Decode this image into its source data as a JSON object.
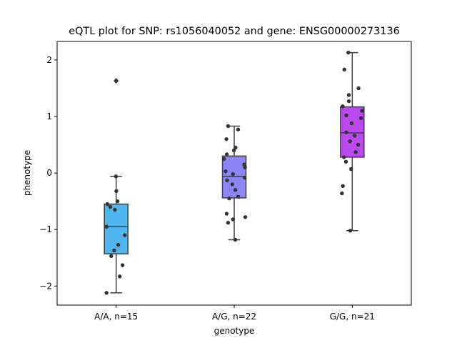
{
  "chart_data": {
    "type": "box",
    "title": "eQTL plot for SNP: rs1056040052 and gene: ENSG00000273136",
    "xlabel": "genotype",
    "ylabel": "phenotype",
    "ylim": [
      -2.35,
      2.35
    ],
    "yticks": [
      -2,
      -1,
      0,
      1,
      2
    ],
    "grid": false,
    "categories": [
      "A/A, n=15",
      "A/G, n=22",
      "G/G, n=21"
    ],
    "colors": [
      "#4fb6ef",
      "#8b85f5",
      "#b84af0"
    ],
    "boxes": [
      {
        "q1": -1.43,
        "median": -0.95,
        "q3": -0.55,
        "whisker_low": -2.12,
        "whisker_high": -0.06,
        "outliers": [
          1.63
        ]
      },
      {
        "q1": -0.44,
        "median": -0.06,
        "q3": 0.3,
        "whisker_low": -1.18,
        "whisker_high": 0.83,
        "outliers": []
      },
      {
        "q1": 0.28,
        "median": 0.71,
        "q3": 1.17,
        "whisker_low": -1.02,
        "whisker_high": 2.13,
        "outliers": []
      }
    ],
    "points": [
      [
        -0.06,
        -0.5,
        -0.55,
        -0.6,
        -0.65,
        -0.32,
        -0.95,
        -1.1,
        -1.27,
        -1.37,
        -1.47,
        -1.63,
        -1.83,
        -2.12,
        1.63
      ],
      [
        0.83,
        0.77,
        0.6,
        0.45,
        0.4,
        0.33,
        0.25,
        0.15,
        0.1,
        0.03,
        -0.02,
        -0.08,
        -0.13,
        -0.2,
        -0.3,
        -0.42,
        -0.45,
        -0.72,
        -0.78,
        -0.82,
        -0.88,
        -1.18
      ],
      [
        2.13,
        1.83,
        1.5,
        1.38,
        1.27,
        1.18,
        1.1,
        1.02,
        0.97,
        0.88,
        0.72,
        0.66,
        0.56,
        0.5,
        0.37,
        0.28,
        0.2,
        0.07,
        -0.23,
        -0.36,
        -1.02
      ]
    ]
  }
}
